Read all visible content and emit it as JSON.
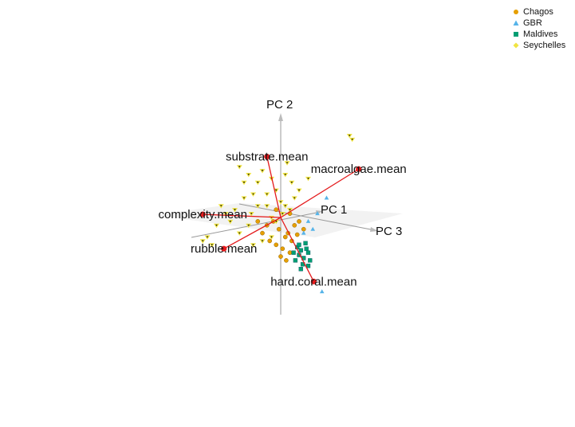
{
  "chart_data": {
    "type": "scatter",
    "projection": "3d-biplot",
    "axes": [
      "PC 1",
      "PC 2",
      "PC 3"
    ],
    "legend": {
      "placement": "top-right",
      "entries": [
        {
          "name": "Chagos",
          "color": "#e69f00",
          "shape": "circle"
        },
        {
          "name": "GBR",
          "color": "#56b4e9",
          "shape": "triangle"
        },
        {
          "name": "Maldives",
          "color": "#009e73",
          "shape": "square"
        },
        {
          "name": "Seychelles",
          "color": "#f0e442",
          "shape": "diamond"
        }
      ]
    },
    "loadings": [
      {
        "name": "substrate.mean",
        "x": -0.15,
        "y": 0.78
      },
      {
        "name": "macroalgae.mean",
        "x": 0.85,
        "y": 0.62
      },
      {
        "name": "complexity.mean",
        "x": -0.85,
        "y": 0.04
      },
      {
        "name": "rubble.mean",
        "x": -0.62,
        "y": -0.4
      },
      {
        "name": "hard.coral.mean",
        "x": 0.36,
        "y": -0.82
      }
    ],
    "vector_color": "#e41a1c",
    "series": [
      {
        "name": "Chagos",
        "points": [
          [
            -0.05,
            -0.35
          ],
          [
            0.02,
            -0.4
          ],
          [
            0.1,
            -0.45
          ],
          [
            -0.12,
            -0.3
          ],
          [
            0.05,
            -0.25
          ],
          [
            0.12,
            -0.3
          ],
          [
            -0.02,
            -0.15
          ],
          [
            0.08,
            -0.2
          ],
          [
            0.15,
            -0.1
          ],
          [
            -0.08,
            -0.05
          ],
          [
            0.18,
            -0.22
          ],
          [
            -0.15,
            -0.1
          ],
          [
            0.0,
            -0.5
          ],
          [
            0.06,
            -0.55
          ],
          [
            -0.2,
            -0.2
          ],
          [
            0.2,
            -0.05
          ],
          [
            0.1,
            0.05
          ],
          [
            -0.05,
            0.1
          ],
          [
            0.25,
            -0.15
          ],
          [
            -0.25,
            -0.05
          ]
        ]
      },
      {
        "name": "GBR",
        "points": [
          [
            0.5,
            0.25
          ],
          [
            0.4,
            0.05
          ],
          [
            0.3,
            -0.05
          ],
          [
            0.35,
            -0.15
          ],
          [
            0.45,
            -0.95
          ],
          [
            0.25,
            -0.2
          ]
        ]
      },
      {
        "name": "Maldives",
        "points": [
          [
            0.18,
            -0.38
          ],
          [
            0.22,
            -0.42
          ],
          [
            0.28,
            -0.4
          ],
          [
            0.2,
            -0.48
          ],
          [
            0.25,
            -0.52
          ],
          [
            0.3,
            -0.45
          ],
          [
            0.16,
            -0.55
          ],
          [
            0.24,
            -0.6
          ],
          [
            0.32,
            -0.55
          ],
          [
            0.2,
            -0.35
          ],
          [
            0.27,
            -0.33
          ],
          [
            0.14,
            -0.45
          ],
          [
            0.3,
            -0.62
          ],
          [
            0.22,
            -0.66
          ]
        ]
      },
      {
        "name": "Seychelles",
        "points": [
          [
            0.75,
            1.05
          ],
          [
            0.78,
            1.0
          ],
          [
            -0.45,
            0.65
          ],
          [
            -0.35,
            0.55
          ],
          [
            -0.2,
            0.6
          ],
          [
            -0.1,
            0.5
          ],
          [
            0.05,
            0.55
          ],
          [
            0.12,
            0.45
          ],
          [
            0.3,
            0.5
          ],
          [
            0.2,
            0.35
          ],
          [
            -0.05,
            0.35
          ],
          [
            -0.15,
            0.3
          ],
          [
            -0.3,
            0.3
          ],
          [
            -0.4,
            0.25
          ],
          [
            -0.5,
            0.1
          ],
          [
            -0.6,
            0.05
          ],
          [
            -0.55,
            -0.05
          ],
          [
            -0.7,
            -0.1
          ],
          [
            -0.8,
            -0.25
          ],
          [
            -0.85,
            -0.3
          ],
          [
            -0.75,
            -0.35
          ],
          [
            -0.45,
            -0.2
          ],
          [
            -0.35,
            -0.1
          ],
          [
            -0.25,
            0.15
          ],
          [
            0.0,
            0.2
          ],
          [
            0.05,
            0.15
          ],
          [
            0.1,
            0.1
          ],
          [
            -0.1,
            0.0
          ],
          [
            -0.05,
            -0.05
          ],
          [
            0.02,
            0.05
          ],
          [
            -0.2,
            -0.3
          ],
          [
            -0.3,
            -0.35
          ],
          [
            -0.1,
            -0.25
          ],
          [
            -0.4,
            0.45
          ],
          [
            -0.25,
            0.45
          ],
          [
            -0.15,
            0.15
          ],
          [
            0.15,
            0.25
          ],
          [
            -0.32,
            0.05
          ],
          [
            -0.65,
            0.15
          ],
          [
            0.07,
            0.7
          ]
        ]
      }
    ]
  }
}
